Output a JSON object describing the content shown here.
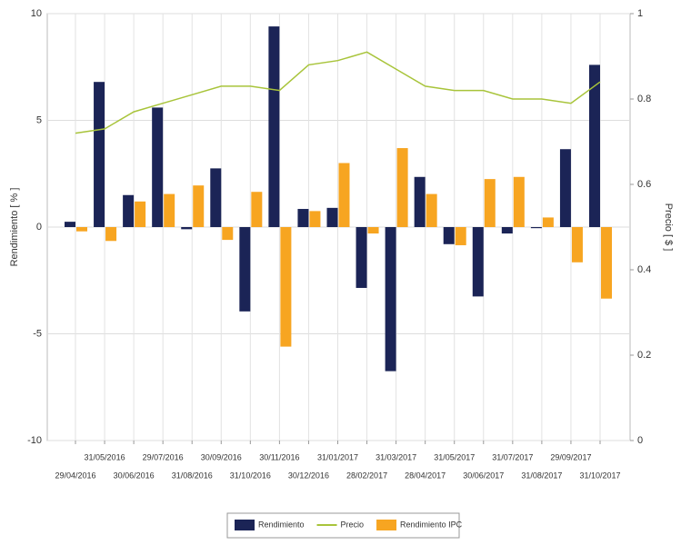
{
  "chart_data": {
    "type": "bar",
    "categories": [
      "29/04/2016",
      "31/05/2016",
      "30/06/2016",
      "29/07/2016",
      "31/08/2016",
      "30/09/2016",
      "31/10/2016",
      "30/11/2016",
      "30/12/2016",
      "31/01/2017",
      "28/02/2017",
      "31/03/2017",
      "28/04/2017",
      "31/05/2017",
      "30/06/2017",
      "31/07/2017",
      "31/08/2017",
      "29/09/2017",
      "31/10/2017"
    ],
    "ylabel": "Rendimiento  [ % ]",
    "y2label": "Precio  [ $ ]",
    "ylim": [
      -10,
      10
    ],
    "yticks": [
      -10,
      -5,
      0,
      5,
      10
    ],
    "y2lim": [
      0,
      1
    ],
    "y2ticks": [
      0,
      0.2,
      0.4,
      0.6,
      0.8,
      1
    ],
    "grid": true,
    "series": [
      {
        "name": "Rendimiento",
        "color": "#1b2456",
        "values": [
          0.25,
          6.8,
          1.5,
          5.6,
          -0.1,
          2.75,
          -3.95,
          9.4,
          0.85,
          0.9,
          -2.85,
          -6.75,
          2.35,
          -0.8,
          -3.25,
          -0.3,
          -0.05,
          3.65,
          7.6
        ]
      },
      {
        "name": "Precio",
        "color": "#a8c43a",
        "type": "line",
        "axis": "y2",
        "values": [
          0.72,
          0.73,
          0.77,
          0.79,
          0.81,
          0.83,
          0.83,
          0.82,
          0.88,
          0.89,
          0.91,
          0.87,
          0.83,
          0.82,
          0.82,
          0.8,
          0.8,
          0.79,
          0.84
        ]
      },
      {
        "name": "Rendimiento IPC",
        "color": "#f7a521",
        "values": [
          -0.2,
          -0.65,
          1.2,
          1.55,
          1.95,
          -0.6,
          1.65,
          -5.6,
          0.75,
          3.0,
          -0.3,
          3.7,
          1.55,
          -0.85,
          2.25,
          2.35,
          0.45,
          -1.65,
          -3.35
        ]
      }
    ]
  }
}
